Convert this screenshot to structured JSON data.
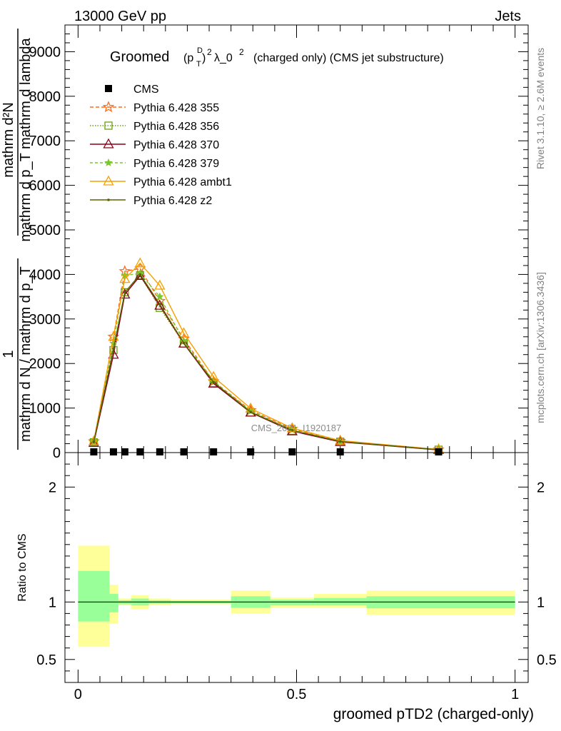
{
  "header": {
    "left": "13000 GeV pp",
    "right": "Jets"
  },
  "side_labels": {
    "rivet": "Rivet 3.1.10, ≥ 2.6M events",
    "mcplots": "mcplots.cern.ch [arXiv:1306.3436]"
  },
  "watermark": "CMS_2021_I1920187",
  "ylabel_main": {
    "numerator_1": "1",
    "denominator_1": "mathrm d N / mathrm d p_T",
    "numerator_2": "mathrm d²N",
    "denominator_2": "mathrm d p_T mathrm d lambda"
  },
  "chart_data": [
    {
      "type": "line",
      "title": "Groomed (p_T^D)^2 λ_0^2  (charged only) (CMS jet substructure)",
      "title_parts": {
        "word": "Groomed",
        "p": "(p",
        "T": "T",
        "D": "D",
        "close": ")",
        "sup2": "2",
        "lambda": "λ_0",
        "rest": "(charged only) (CMS jet substructure)"
      },
      "xlim": [
        -0.03,
        1.03
      ],
      "ylim": [
        0,
        9600
      ],
      "yticks": [
        {
          "v": 0,
          "label": "0"
        },
        {
          "v": 1000,
          "label": "1000"
        },
        {
          "v": 2000,
          "label": "2000"
        },
        {
          "v": 3000,
          "label": "3000"
        },
        {
          "v": 4000,
          "label": "4000"
        },
        {
          "v": 5000,
          "label": "5000"
        },
        {
          "v": 6000,
          "label": "6000"
        },
        {
          "v": 7000,
          "label": "7000"
        },
        {
          "v": 8000,
          "label": "8000"
        },
        {
          "v": 9000,
          "label": "9000"
        }
      ],
      "x": [
        0.036,
        0.081,
        0.107,
        0.142,
        0.187,
        0.242,
        0.31,
        0.395,
        0.49,
        0.6,
        0.825
      ],
      "series": [
        {
          "name": "CMS",
          "marker": "square",
          "color": "#000000",
          "dash": "",
          "values": [
            12,
            12,
            12,
            12,
            12,
            12,
            12,
            12,
            12,
            12,
            12
          ]
        },
        {
          "name": "Pythia 6.428 355",
          "marker": "star",
          "color": "#ff6b1a",
          "dash": "5,3",
          "values": [
            250,
            2600,
            4070,
            4130,
            3400,
            2550,
            1600,
            950,
            530,
            260,
            70
          ]
        },
        {
          "name": "Pythia 6.428 356",
          "marker": "open-square",
          "color": "#6aa011",
          "dash": "1.5,2",
          "values": [
            230,
            2300,
            3600,
            3980,
            3250,
            2450,
            1560,
            900,
            490,
            245,
            65
          ]
        },
        {
          "name": "Pythia 6.428 370",
          "marker": "open-triangle",
          "color": "#8b0018",
          "dash": "",
          "values": [
            220,
            2200,
            3550,
            3970,
            3300,
            2450,
            1550,
            900,
            480,
            240,
            60
          ]
        },
        {
          "name": "Pythia 6.428 379",
          "marker": "small-star",
          "color": "#7bc62c",
          "dash": "4,3",
          "values": [
            240,
            2450,
            3980,
            4020,
            3500,
            2500,
            1600,
            930,
            510,
            250,
            65
          ]
        },
        {
          "name": "Pythia 6.428 ambt1",
          "marker": "open-triangle",
          "color": "#f5a000",
          "dash": "",
          "values": [
            250,
            2600,
            3900,
            4250,
            3750,
            2680,
            1700,
            990,
            550,
            270,
            70
          ]
        },
        {
          "name": "Pythia 6.428 z2",
          "marker": "dot",
          "color": "#5a6200",
          "dash": "",
          "values": [
            240,
            2330,
            3600,
            4000,
            3330,
            2460,
            1580,
            910,
            500,
            250,
            62
          ]
        }
      ]
    },
    {
      "type": "area",
      "xlabel": "groomed pTD2 (charged-only)",
      "ylabel": "Ratio to CMS",
      "xlim": [
        -0.03,
        1.03
      ],
      "ylim": [
        0.3,
        2.3
      ],
      "xticks": [
        {
          "v": 0,
          "label": "0"
        },
        {
          "v": 0.5,
          "label": "0.5"
        },
        {
          "v": 1,
          "label": "1"
        }
      ],
      "yticks": [
        {
          "v": 0.5,
          "label": "0.5"
        },
        {
          "v": 1,
          "label": "1"
        },
        {
          "v": 2,
          "label": "2"
        }
      ],
      "bins": [
        0,
        0.072,
        0.092,
        0.122,
        0.162,
        0.212,
        0.272,
        0.35,
        0.44,
        0.54,
        0.66,
        1.0
      ],
      "band_outer": {
        "color": "#ffff99",
        "lo": [
          0.61,
          0.81,
          0.97,
          0.94,
          0.97,
          0.98,
          0.98,
          0.9,
          0.95,
          0.95,
          0.89
        ],
        "hi": [
          1.49,
          1.15,
          1.03,
          1.06,
          1.03,
          1.02,
          1.02,
          1.1,
          1.04,
          1.07,
          1.1
        ]
      },
      "band_inner": {
        "color": "#99ff99",
        "lo": [
          0.83,
          0.91,
          0.98,
          0.97,
          0.985,
          0.99,
          0.99,
          0.95,
          0.97,
          0.97,
          0.945
        ],
        "hi": [
          1.27,
          1.07,
          1.015,
          1.03,
          1.015,
          1.01,
          1.01,
          1.05,
          1.02,
          1.035,
          1.05
        ]
      },
      "reference": 1
    }
  ]
}
